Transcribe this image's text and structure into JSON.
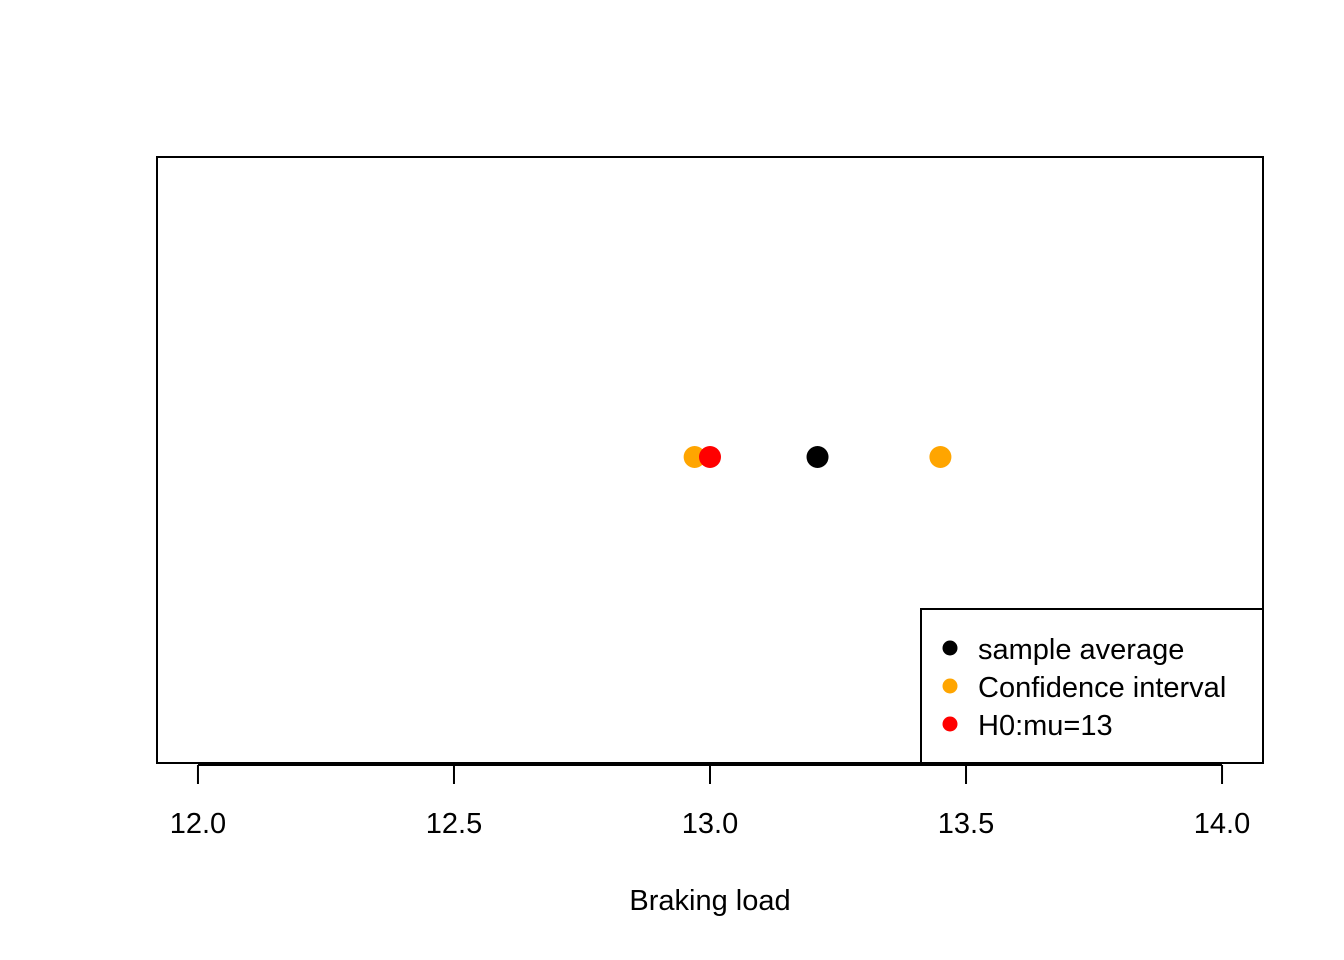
{
  "chart_data": {
    "type": "scatter",
    "title": "",
    "xlabel": "Braking load",
    "ylabel": "",
    "xlim": [
      11.92,
      14.08
    ],
    "ylim": [
      0,
      1
    ],
    "xticks": [
      12.0,
      12.5,
      13.0,
      13.5,
      14.0
    ],
    "xtick_labels": [
      "12.0",
      "12.5",
      "13.0",
      "13.5",
      "14.0"
    ],
    "grid": false,
    "legend_position": "bottom-right",
    "series": [
      {
        "name": "sample average",
        "color": "#000000",
        "points": [
          {
            "x": 13.21,
            "y": 0.5
          }
        ]
      },
      {
        "name": "Confidence interval",
        "color": "#FFA500",
        "points": [
          {
            "x": 12.97,
            "y": 0.5
          },
          {
            "x": 13.45,
            "y": 0.5
          }
        ]
      },
      {
        "name": "H0:mu=13",
        "color": "#FF0000",
        "points": [
          {
            "x": 13.0,
            "y": 0.5
          }
        ]
      }
    ]
  }
}
